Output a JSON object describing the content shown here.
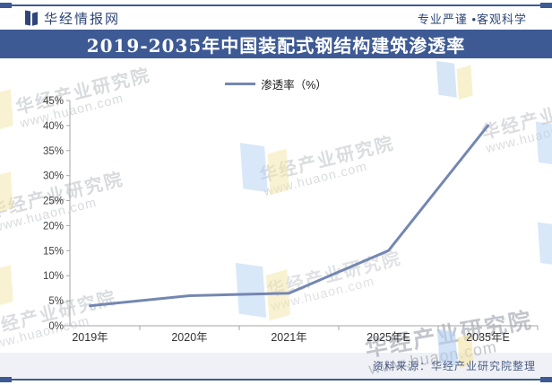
{
  "header": {
    "brand": "华经情报网",
    "slogan": "专业严谨 •客观科学"
  },
  "title_bar": {
    "title": "2019-2035年中国装配式钢结构建筑渗透率"
  },
  "legend": {
    "series_label": "渗透率（%）"
  },
  "chart_data": {
    "type": "line",
    "title": "2019-2035年中国装配式钢结构建筑渗透率",
    "categories": [
      "2019年",
      "2020年",
      "2021年",
      "2025年E",
      "2035年E"
    ],
    "series": [
      {
        "name": "渗透率（%）",
        "values": [
          4,
          6,
          6.5,
          15,
          40
        ]
      }
    ],
    "xlabel": "",
    "ylabel": "",
    "ylim": [
      0,
      45
    ],
    "ytick_step": 5,
    "ytick_labels": [
      "0%",
      "5%",
      "10%",
      "15%",
      "20%",
      "25%",
      "30%",
      "35%",
      "40%",
      "45%"
    ],
    "grid": false,
    "legend_position": "top-center",
    "line_color": "#7487B1"
  },
  "footer": {
    "source": "资料来源：华经产业研究院整理"
  },
  "watermark": {
    "line1": "华经产业研究院",
    "line2": "www.huaon.com"
  },
  "colors": {
    "accent_navy": "#3E5A94",
    "brand_text": "#2E4679",
    "line": "#7487B1",
    "axis": "#A6A6A6",
    "tick_label": "#404040",
    "footer_bg": "#EFF1F6",
    "footer_text": "#4E5E84",
    "watermark_gray": "#878D99",
    "watermark_blue": "#B5D2F2",
    "watermark_yellow": "#F4E6A6"
  }
}
